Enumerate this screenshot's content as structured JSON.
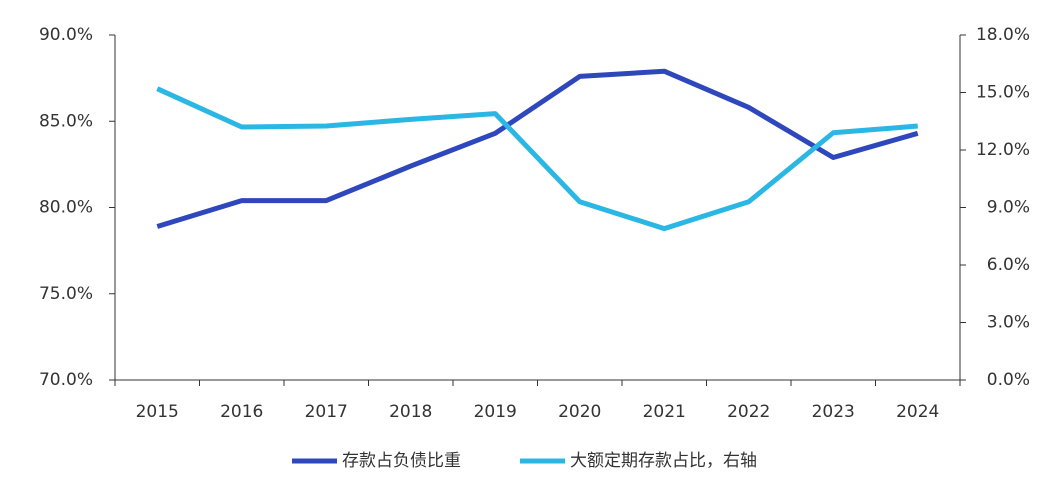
{
  "chart_data": {
    "type": "line",
    "categories": [
      "2015",
      "2016",
      "2017",
      "2018",
      "2019",
      "2020",
      "2021",
      "2022",
      "2023",
      "2024"
    ],
    "series": [
      {
        "name": "存款占负债比重",
        "color": "#2f47bd",
        "values": [
          78.9,
          80.4,
          80.4,
          82.4,
          84.3,
          87.6,
          87.9,
          85.8,
          82.9,
          84.3
        ]
      },
      {
        "name": "大额定期存款占比，右轴",
        "color": "#2bb7e3",
        "axis": "y2",
        "values": [
          15.2,
          13.2,
          13.25,
          13.6,
          13.9,
          9.3,
          7.9,
          9.3,
          12.9,
          13.25
        ]
      }
    ],
    "ylim": [
      70,
      90
    ],
    "yticks": [
      {
        "value": 70,
        "label": "70.0%"
      },
      {
        "value": 75,
        "label": "75.0%"
      },
      {
        "value": 80,
        "label": "80.0%"
      },
      {
        "value": 85,
        "label": "85.0%"
      },
      {
        "value": 90,
        "label": "90.0%"
      }
    ],
    "y2lim": [
      0,
      18
    ],
    "y2ticks": [
      {
        "value": 0,
        "label": "0.0%"
      },
      {
        "value": 3,
        "label": "3.0%"
      },
      {
        "value": 6,
        "label": "6.0%"
      },
      {
        "value": 9,
        "label": "9.0%"
      },
      {
        "value": 12,
        "label": "12.0%"
      },
      {
        "value": 15,
        "label": "15.0%"
      },
      {
        "value": 18,
        "label": "18.0%"
      }
    ]
  }
}
